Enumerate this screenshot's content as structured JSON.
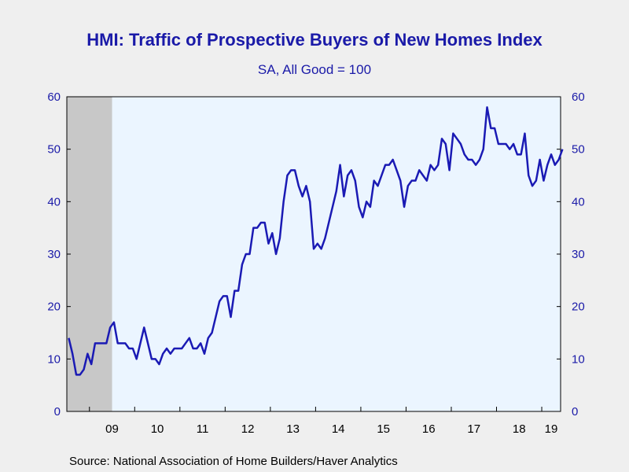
{
  "chart_data": {
    "type": "line",
    "title": "HMI: Traffic of Prospective Buyers of New Homes Index",
    "subtitle": "SA, All Good = 100",
    "source": "Source:  National Association of Home Builders/Haver Analytics",
    "ylim": [
      0,
      60
    ],
    "yticks": [
      0,
      10,
      20,
      30,
      40,
      50,
      60
    ],
    "x_start": "2008-07",
    "x_end": "2019-05",
    "x_tick_labels": [
      "09",
      "10",
      "11",
      "12",
      "13",
      "14",
      "15",
      "16",
      "17",
      "18",
      "19"
    ],
    "recession_shading": {
      "start": "2008-07",
      "end": "2009-06"
    },
    "colors": {
      "line": "#1a1ab4",
      "plot_bg": "#ebf5ff",
      "recession": "#c8c8c8",
      "axis_text": "#1a1aa8"
    },
    "series": [
      {
        "values": [
          14,
          11,
          7,
          7,
          8,
          11,
          9,
          13,
          13,
          13,
          13,
          16,
          17,
          13,
          13,
          13,
          12,
          12,
          10,
          13,
          16,
          13,
          10,
          10,
          9,
          11,
          12,
          11,
          12,
          12,
          12,
          13,
          14,
          12,
          12,
          13,
          11,
          14,
          15,
          18,
          21,
          22,
          22,
          18,
          23,
          23,
          28,
          30,
          30,
          35,
          35,
          36,
          36,
          32,
          34,
          30,
          33,
          40,
          45,
          46,
          46,
          43,
          41,
          43,
          40,
          31,
          32,
          31,
          33,
          36,
          39,
          42,
          47,
          41,
          45,
          46,
          44,
          39,
          37,
          40,
          39,
          44,
          43,
          45,
          47,
          47,
          48,
          46,
          44,
          39,
          43,
          44,
          44,
          46,
          45,
          44,
          47,
          46,
          47,
          52,
          51,
          46,
          53,
          52,
          51,
          49,
          48,
          48,
          47,
          48,
          50,
          58,
          54,
          54,
          51,
          51,
          51,
          50,
          51,
          49,
          49,
          53,
          45,
          43,
          44,
          48,
          44,
          47,
          49,
          47,
          48,
          50
        ]
      }
    ]
  }
}
